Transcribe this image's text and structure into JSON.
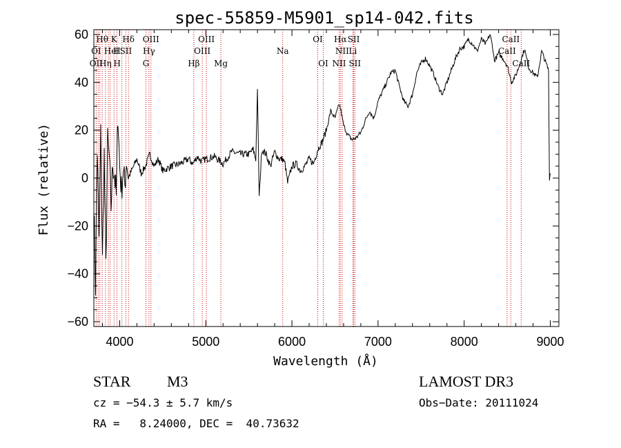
{
  "colors": {
    "spectrum": "#000000",
    "line_marker": "#cc0000",
    "axes": "#000000",
    "background": "#ffffff"
  },
  "chart_data": {
    "type": "line",
    "title": "spec-55859-M5901_sp14-042.fits",
    "xlabel": "Wavelength (Å)",
    "ylabel": "Flux (relative)",
    "xlim": [
      3700,
      9100
    ],
    "ylim": [
      -62,
      62
    ],
    "xticks": [
      4000,
      5000,
      6000,
      7000,
      8000,
      9000
    ],
    "yticks": [
      -60,
      -40,
      -20,
      0,
      20,
      40,
      60
    ],
    "series": [
      {
        "name": "flux",
        "x": [
          3700,
          3720,
          3740,
          3760,
          3780,
          3800,
          3820,
          3840,
          3860,
          3880,
          3900,
          3920,
          3940,
          3960,
          3980,
          4000,
          4020,
          4040,
          4060,
          4080,
          4100,
          4150,
          4200,
          4250,
          4300,
          4350,
          4400,
          4450,
          4500,
          4600,
          4700,
          4800,
          4850,
          4900,
          4950,
          5000,
          5100,
          5200,
          5300,
          5400,
          5500,
          5550,
          5580,
          5600,
          5620,
          5650,
          5700,
          5750,
          5800,
          5850,
          5890,
          5920,
          5950,
          6000,
          6050,
          6100,
          6150,
          6200,
          6250,
          6300,
          6350,
          6400,
          6450,
          6500,
          6550,
          6570,
          6600,
          6650,
          6700,
          6750,
          6800,
          6850,
          6900,
          6950,
          7000,
          7050,
          7100,
          7150,
          7200,
          7250,
          7300,
          7350,
          7400,
          7450,
          7500,
          7550,
          7600,
          7650,
          7700,
          7750,
          7800,
          7850,
          7900,
          7950,
          8000,
          8050,
          8100,
          8150,
          8200,
          8250,
          8300,
          8330,
          8350,
          8400,
          8450,
          8500,
          8550,
          8600,
          8650,
          8700,
          8750,
          8800,
          8850,
          8900,
          8950,
          8980,
          8990,
          9000
        ],
        "y": [
          -10,
          -45,
          12,
          -25,
          18,
          -35,
          10,
          -38,
          15,
          8,
          -12,
          6,
          2,
          -8,
          28,
          5,
          -5,
          3,
          -3,
          8,
          0,
          4,
          8,
          2,
          5,
          10,
          5,
          8,
          3,
          5,
          6,
          8,
          6,
          9,
          7,
          8,
          9,
          6,
          11,
          10,
          10,
          12,
          8,
          36,
          -8,
          12,
          10,
          5,
          11,
          8,
          8,
          6,
          -2,
          5,
          6,
          3,
          5,
          8,
          6,
          12,
          15,
          20,
          28,
          25,
          31,
          28,
          22,
          18,
          16,
          17,
          19,
          24,
          28,
          25,
          32,
          36,
          40,
          44,
          45,
          38,
          32,
          30,
          35,
          44,
          48,
          50,
          47,
          43,
          38,
          35,
          40,
          45,
          50,
          54,
          55,
          58,
          56,
          53,
          58,
          56,
          60,
          55,
          49,
          52,
          50,
          47,
          40,
          43,
          48,
          54,
          46,
          44,
          42,
          53,
          48,
          45,
          0,
          2
        ],
        "unit_x": "Angstrom"
      }
    ],
    "spectral_lines": [
      {
        "label": "Hθ",
        "wavelength": 3797,
        "row": 0
      },
      {
        "label": "K",
        "wavelength": 3934,
        "row": 0
      },
      {
        "label": "Hδ",
        "wavelength": 4102,
        "row": 0
      },
      {
        "label": "OIII",
        "wavelength": 4363,
        "row": 0
      },
      {
        "label": "OIII",
        "wavelength": 5007,
        "row": 0
      },
      {
        "label": "OI",
        "wavelength": 6300,
        "row": 0
      },
      {
        "label": "Hα",
        "wavelength": 6563,
        "row": 0
      },
      {
        "label": "SII",
        "wavelength": 6717,
        "row": 0
      },
      {
        "label": "CaII",
        "wavelength": 8542,
        "row": 0
      },
      {
        "label": "OI",
        "wavelength": 3727,
        "row": 1
      },
      {
        "label": "H",
        "wavelength": 3968,
        "row": 1
      },
      {
        "label": "He",
        "wavelength": 3889,
        "row": 1
      },
      {
        "label": "I",
        "wavelength": 3970,
        "row": 1
      },
      {
        "label": "SII",
        "wavelength": 4072,
        "row": 1
      },
      {
        "label": "Hγ",
        "wavelength": 4340,
        "row": 1
      },
      {
        "label": "OIII",
        "wavelength": 4959,
        "row": 1
      },
      {
        "label": "Na",
        "wavelength": 5893,
        "row": 1
      },
      {
        "label": "NII",
        "wavelength": 6583,
        "row": 1
      },
      {
        "label": "Li",
        "wavelength": 6708,
        "row": 1
      },
      {
        "label": "CaII",
        "wavelength": 8498,
        "row": 1
      },
      {
        "label": "OII",
        "wavelength": 3727,
        "row": 2
      },
      {
        "label": "Hη",
        "wavelength": 3835,
        "row": 2
      },
      {
        "label": "H",
        "wavelength": 3970,
        "row": 2
      },
      {
        "label": "G",
        "wavelength": 4305,
        "row": 2
      },
      {
        "label": "Hβ",
        "wavelength": 4861,
        "row": 2
      },
      {
        "label": "Mg",
        "wavelength": 5175,
        "row": 2
      },
      {
        "label": "OI",
        "wavelength": 6364,
        "row": 2
      },
      {
        "label": "NII",
        "wavelength": 6548,
        "row": 2
      },
      {
        "label": "SII",
        "wavelength": 6731,
        "row": 2
      },
      {
        "label": "CaII",
        "wavelength": 8662,
        "row": 2
      }
    ],
    "marker_lines": [
      3727,
      3750,
      3770,
      3797,
      3835,
      3869,
      3889,
      3934,
      3968,
      4026,
      4072,
      4102,
      4305,
      4340,
      4363,
      4861,
      4959,
      5007,
      5175,
      5893,
      6300,
      6364,
      6548,
      6563,
      6583,
      6708,
      6717,
      6731,
      8498,
      8542,
      8662
    ]
  },
  "info": {
    "object_class": "STAR",
    "subclass": "M3",
    "survey": "LAMOST DR3",
    "redshift": "cz = −54.3 ± 5.7 km/s",
    "obs_date": "Obs−Date: 20111024",
    "coords": "RA =   8.24000, DEC =  40.73632"
  }
}
